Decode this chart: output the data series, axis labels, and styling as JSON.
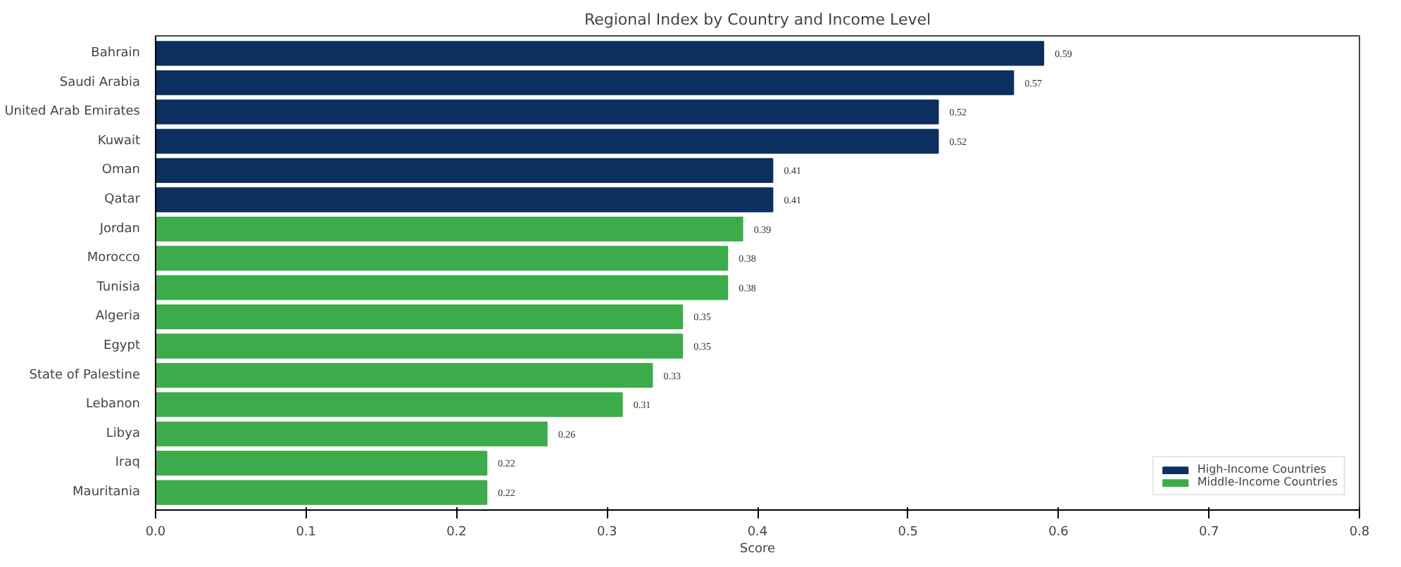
{
  "chart_data": {
    "type": "bar",
    "orientation": "horizontal",
    "title": "Regional Index by Country and Income Level",
    "xlabel": "Score",
    "categories": [
      "Bahrain",
      "Saudi Arabia",
      "United Arab Emirates",
      "Kuwait",
      "Oman",
      "Qatar",
      "Jordan",
      "Morocco",
      "Tunisia",
      "Algeria",
      "Egypt",
      "State of Palestine",
      "Lebanon",
      "Libya",
      "Iraq",
      "Mauritania"
    ],
    "series": [
      {
        "name": "High-Income Countries",
        "color": "#0b2f5f",
        "values": [
          0.59,
          0.57,
          0.52,
          0.52,
          0.41,
          0.41,
          null,
          null,
          null,
          null,
          null,
          null,
          null,
          null,
          null,
          null
        ]
      },
      {
        "name": "Middle-Income Countries",
        "color": "#3cac4a",
        "values": [
          null,
          null,
          null,
          null,
          null,
          null,
          0.39,
          0.38,
          0.38,
          0.35,
          0.35,
          0.33,
          0.31,
          0.26,
          0.22,
          0.22
        ]
      }
    ],
    "xlim": [
      0.0,
      0.8
    ],
    "xticks": [
      {
        "value": 0,
        "label": "0.0"
      },
      0.1,
      0.2,
      0.3,
      0.4,
      0.5,
      0.6,
      0.7,
      0.8
    ],
    "data_labels": true,
    "legend": "bottom right",
    "grid": false
  }
}
